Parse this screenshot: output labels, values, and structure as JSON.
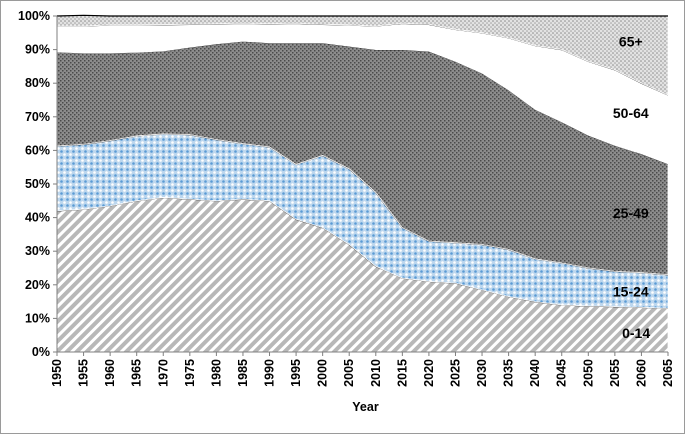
{
  "chart_data": {
    "type": "area",
    "stacked": true,
    "xlabel": "Year",
    "ylabel": "",
    "ylim": [
      0,
      100
    ],
    "yticks": [
      "0%",
      "10%",
      "20%",
      "30%",
      "40%",
      "50%",
      "60%",
      "70%",
      "80%",
      "90%",
      "100%"
    ],
    "x": [
      1950,
      1955,
      1960,
      1965,
      1970,
      1975,
      1980,
      1985,
      1990,
      1995,
      2000,
      2005,
      2010,
      2015,
      2020,
      2025,
      2030,
      2035,
      2040,
      2045,
      2050,
      2055,
      2060,
      2065
    ],
    "grid": false,
    "series": [
      {
        "name": "0-14",
        "color": "#bfbfbf",
        "pattern": "diagonal-stripes",
        "values": [
          42,
          42.5,
          43.5,
          45,
          46,
          45.5,
          45,
          45.5,
          45,
          39.5,
          37,
          32,
          25.5,
          22,
          21,
          20.5,
          18.5,
          16.5,
          15,
          14,
          13.7,
          13.5,
          13.3,
          13
        ]
      },
      {
        "name": "15-24",
        "color": "#9dc3e6",
        "pattern": "dots",
        "values": [
          19.3,
          19.3,
          19.4,
          19.3,
          18.9,
          19.2,
          18.2,
          16.5,
          16,
          16.3,
          21.5,
          22.5,
          22,
          15,
          12,
          12,
          13.5,
          14,
          12.7,
          12.5,
          11.3,
          10.5,
          10.3,
          10
        ]
      },
      {
        "name": "25-49",
        "color": "#7f7f7f",
        "pattern": "crosshatch",
        "values": [
          28,
          27.2,
          26.1,
          24.9,
          24.7,
          26,
          28.5,
          30.5,
          31,
          36.2,
          33.5,
          36.5,
          42.5,
          53,
          56.5,
          54,
          51,
          47.5,
          44.5,
          42,
          39.5,
          37.5,
          35.4,
          33
        ]
      },
      {
        "name": "50-64",
        "color": "#ffffff",
        "pattern": "solid",
        "values": [
          7.7,
          8,
          8.3,
          8.1,
          7.8,
          6.8,
          6,
          5.3,
          5.7,
          5.8,
          5.5,
          6.3,
          7,
          7.8,
          8,
          9.5,
          12,
          15.5,
          19,
          21.5,
          22,
          22.5,
          21,
          20.5
        ]
      },
      {
        "name": "65+",
        "color": "#d0d0d0",
        "pattern": "fine-dots",
        "values": [
          3,
          3.2,
          2.7,
          2.7,
          2.6,
          2.5,
          2.3,
          2.2,
          2.3,
          2.2,
          2.5,
          2.7,
          3,
          2.2,
          2.5,
          4,
          5,
          6.5,
          8.8,
          10,
          13.5,
          16,
          20,
          23.5
        ]
      }
    ],
    "labels": [
      {
        "text": "65+",
        "series": "65+"
      },
      {
        "text": "50-64",
        "series": "50-64"
      },
      {
        "text": "25-49",
        "series": "25-49"
      },
      {
        "text": "15-24",
        "series": "15-24"
      },
      {
        "text": "0-14",
        "series": "0-14"
      }
    ]
  }
}
